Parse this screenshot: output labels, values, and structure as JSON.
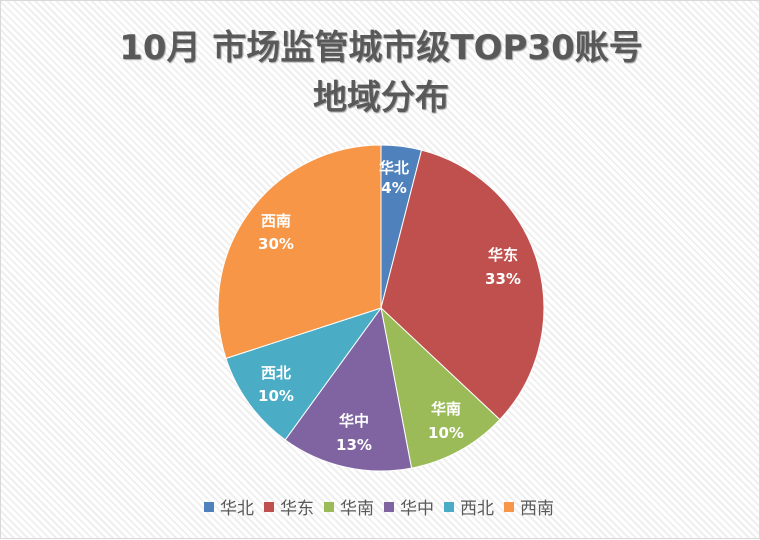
{
  "title": {
    "line1": "10月 市场监管城市级TOP30账号",
    "line2": "地域分布"
  },
  "chart_data": {
    "type": "pie",
    "title": "10月 市场监管城市级TOP30账号地域分布",
    "categories": [
      "华北",
      "华东",
      "华南",
      "华中",
      "西北",
      "西南"
    ],
    "values": [
      4,
      33,
      10,
      13,
      10,
      30
    ],
    "unit": "%",
    "colors": [
      "#4f81bd",
      "#c0504d",
      "#9bbb59",
      "#8064a2",
      "#4bacc6",
      "#f79646"
    ],
    "data_labels": [
      "华北 4%",
      "华东 33%",
      "华南 10%",
      "华中 13%",
      "西北 10%",
      "西南 30%"
    ],
    "legend_position": "bottom",
    "start_angle": "12 o'clock, clockwise"
  },
  "legend": [
    {
      "label": "华北",
      "color": "#4f81bd"
    },
    {
      "label": "华东",
      "color": "#c0504d"
    },
    {
      "label": "华南",
      "color": "#9bbb59"
    },
    {
      "label": "华中",
      "color": "#8064a2"
    },
    {
      "label": "西北",
      "color": "#4bacc6"
    },
    {
      "label": "西南",
      "color": "#f79646"
    }
  ],
  "labels": [
    {
      "name": "华北",
      "pct": "4%"
    },
    {
      "name": "华东",
      "pct": "33%"
    },
    {
      "name": "华南",
      "pct": "10%"
    },
    {
      "name": "华中",
      "pct": "13%"
    },
    {
      "name": "西北",
      "pct": "10%"
    },
    {
      "name": "西南",
      "pct": "30%"
    }
  ]
}
